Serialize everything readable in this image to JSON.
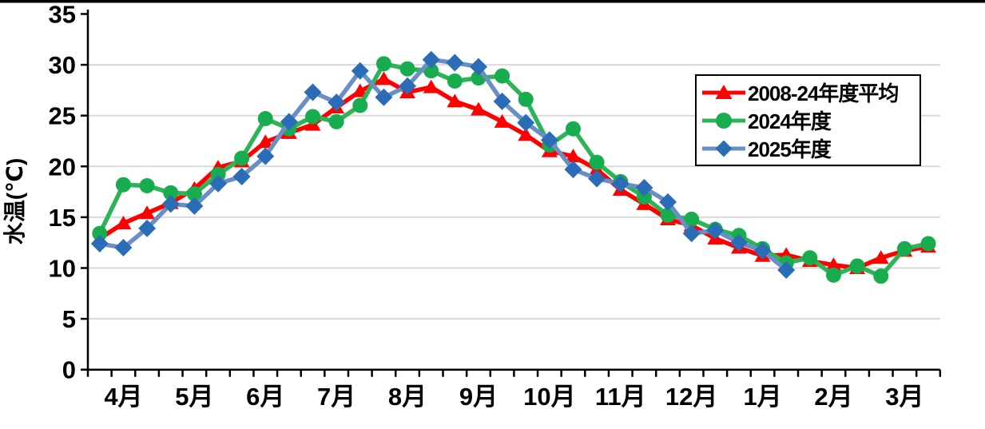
{
  "page": {
    "background": "#ffffff",
    "top_border_color": "#000000"
  },
  "chart_data": {
    "type": "line",
    "title": "",
    "ylabel": "水温(℃)",
    "ylim": [
      0,
      35
    ],
    "y_ticks": [
      0,
      5,
      10,
      15,
      20,
      25,
      30,
      35
    ],
    "y_gridlines": [
      5,
      10,
      15,
      20,
      25,
      30
    ],
    "gridline_color": "#d9d9d9",
    "axis_color": "#000000",
    "x_month_labels": [
      "4月",
      "5月",
      "6月",
      "7月",
      "8月",
      "9月",
      "10月",
      "11月",
      "12月",
      "1月",
      "2月",
      "3月"
    ],
    "points_per_month": 3,
    "legend_position": "top-right",
    "series": [
      {
        "id": "avg",
        "name": "2008-24年度平均",
        "marker": "triangle",
        "line_color": "#ff0000",
        "marker_color": "#ff0000",
        "values": [
          12.9,
          14.4,
          15.4,
          16.4,
          17.8,
          19.9,
          20.5,
          22.4,
          23.3,
          24.1,
          25.8,
          27.4,
          28.6,
          27.3,
          27.8,
          26.4,
          25.6,
          24.4,
          23.1,
          21.5,
          21.0,
          19.7,
          17.7,
          16.3,
          14.8,
          14.2,
          12.9,
          12.0,
          11.2,
          11.3,
          10.7,
          10.3,
          10.0,
          11.0,
          11.7,
          12.1
        ]
      },
      {
        "id": "2024",
        "name": "2024年度",
        "marker": "circle",
        "line_color": "#2eb456",
        "marker_color": "#17ac4d",
        "values": [
          13.4,
          18.2,
          18.1,
          17.4,
          17.3,
          19.2,
          20.8,
          24.7,
          23.7,
          24.9,
          24.4,
          26.0,
          30.1,
          29.6,
          29.4,
          28.4,
          28.7,
          28.9,
          26.6,
          22.1,
          23.7,
          20.4,
          18.5,
          17.0,
          15.2,
          14.8,
          13.8,
          13.2,
          11.9,
          10.5,
          11.0,
          9.3,
          10.2,
          9.2,
          11.9,
          12.4
        ]
      },
      {
        "id": "2025",
        "name": "2025年度",
        "marker": "diamond",
        "line_color": "#698fc6",
        "marker_color": "#2a6cb5",
        "values": [
          12.4,
          12.0,
          13.9,
          16.3,
          16.1,
          18.3,
          19.0,
          21.0,
          24.4,
          27.3,
          26.3,
          29.4,
          26.8,
          27.9,
          30.5,
          30.2,
          29.8,
          26.4,
          24.3,
          22.6,
          19.7,
          18.8,
          18.3,
          17.9,
          16.5,
          13.4,
          13.7,
          12.5,
          11.7,
          9.8,
          null,
          null,
          null,
          null,
          null,
          null
        ]
      }
    ]
  }
}
